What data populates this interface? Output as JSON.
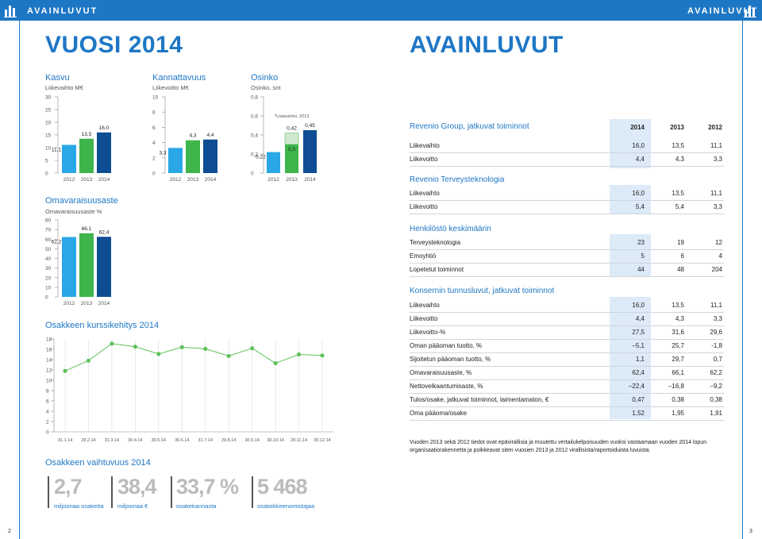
{
  "header": {
    "brand": "AVAINLUVUT"
  },
  "left_title": "VUOSI 2014",
  "right_title": "AVAINLUVUT",
  "colors": {
    "y2012": "#29a7e6",
    "y2013": "#3db54a",
    "y2014": "#0e4c93",
    "accent": "#1e77c5",
    "highlight": "#ddeaf7"
  },
  "charts": [
    {
      "id": "kasvu",
      "type": "bar",
      "title": "Kasvu",
      "ylabel": "Liikevaihto M€",
      "categories": [
        "2012",
        "2013",
        "2014"
      ],
      "values": [
        11.1,
        13.5,
        16.0
      ],
      "value_labels": [
        "11,1",
        "13,5",
        "16,0"
      ],
      "ylim": [
        0,
        30
      ],
      "yticks": [
        "0",
        "5",
        "10",
        "15",
        "20",
        "25",
        "30"
      ]
    },
    {
      "id": "kannattavuus",
      "type": "bar",
      "title": "Kannattavuus",
      "ylabel": "Liikevoitto M€",
      "categories": [
        "2012",
        "2013",
        "2014"
      ],
      "values": [
        3.3,
        4.3,
        4.4
      ],
      "value_labels": [
        "3,3",
        "4,3",
        "4,4"
      ],
      "ylim": [
        0,
        10
      ],
      "yticks": [
        "0",
        "2",
        "4",
        "6",
        "8",
        "10"
      ]
    },
    {
      "id": "osinko",
      "type": "bar",
      "title": "Osinko",
      "ylabel": "Osinko, snt",
      "categories": [
        "2012",
        "2013",
        "2014"
      ],
      "values": [
        0.22,
        0.3,
        0.45
      ],
      "extra_2013": 0.12,
      "value_labels": [
        "0,22",
        "0,3",
        "0,45"
      ],
      "extra_label": "0,42",
      "annotation": "*Lisäosinko, 2013",
      "ylim": [
        0,
        0.8
      ],
      "yticks": [
        "0",
        "0,2",
        "0,4",
        "0,6",
        "0,8"
      ]
    },
    {
      "id": "omavaraisuusaste",
      "type": "bar",
      "title": "Omavaraisuusaste",
      "ylabel": "Omavaraisuusaste %",
      "categories": [
        "2012",
        "2013",
        "2014"
      ],
      "values": [
        62.2,
        66.1,
        62.4
      ],
      "value_labels": [
        "62,2",
        "66,1",
        "62,4"
      ],
      "ylim": [
        0,
        80
      ],
      "yticks": [
        "0",
        "10",
        "20",
        "30",
        "40",
        "50",
        "60",
        "70",
        "80"
      ]
    }
  ],
  "line_chart": {
    "title": "Osakkeen kurssikehitys 2014",
    "chart_data": {
      "type": "line",
      "x": [
        "31.1.14",
        "28.2.14",
        "31.3.14",
        "30.4.14",
        "30.5.14",
        "30.6.14",
        "31.7.14",
        "29.8.14",
        "30.9.14",
        "30.10.14",
        "28.11.14",
        "30.12.14"
      ],
      "values": [
        11.8,
        13.8,
        17.1,
        16.5,
        15.1,
        16.4,
        16.1,
        14.7,
        16.2,
        13.3,
        15.0,
        14.8
      ],
      "ylim": [
        0,
        18
      ],
      "yticks": [
        "0",
        "2",
        "4",
        "6",
        "8",
        "10",
        "12",
        "14",
        "16",
        "18"
      ]
    }
  },
  "volume": {
    "title": "Osakkeen vaihtuvuus 2014",
    "items": [
      {
        "num": "2,7",
        "cap": "miljoonaa osaketta"
      },
      {
        "num": "38,4",
        "cap": "miljoonaa €"
      },
      {
        "num": "33,7 %",
        "cap": "osakekannasta"
      },
      {
        "num": "5 468",
        "cap": "osakekkeenomistajaa"
      }
    ]
  },
  "tables": {
    "years": [
      "2014",
      "2013",
      "2012"
    ],
    "group": {
      "title": "Revenio Group, jatkuvat toiminnot",
      "rows": [
        {
          "label": "Liikevaihto",
          "vals": [
            "16,0",
            "13,5",
            "11,1"
          ]
        },
        {
          "label": "Liikevoitto",
          "vals": [
            "4,4",
            "4,3",
            "3,3"
          ]
        }
      ]
    },
    "terveys": {
      "title": "Revenio Terveysteknologia",
      "rows": [
        {
          "label": "Liikevaihto",
          "vals": [
            "16,0",
            "13,5",
            "11,1"
          ]
        },
        {
          "label": "Liikevoitto",
          "vals": [
            "5,4",
            "5,4",
            "3,3"
          ]
        }
      ]
    },
    "henkilosto": {
      "title": "Henkilöstö keskimäärin",
      "rows": [
        {
          "label": "Terveysteknologia",
          "vals": [
            "23",
            "19",
            "12"
          ]
        },
        {
          "label": "Emoyhtiö",
          "vals": [
            "5",
            "6",
            "4"
          ]
        },
        {
          "label": "Lopetetut toiminnot",
          "vals": [
            "44",
            "48",
            "204"
          ]
        }
      ]
    },
    "konserni": {
      "title": "Konsernin tunnusluvut, jatkuvat toiminnot",
      "rows": [
        {
          "label": "Liikevaihto",
          "vals": [
            "16,0",
            "13,5",
            "11,1"
          ]
        },
        {
          "label": "Liikevoitto",
          "vals": [
            "4,4",
            "4,3",
            "3,3"
          ]
        },
        {
          "label": "Liikevoitto-%",
          "vals": [
            "27,5",
            "31,6",
            "29,6"
          ]
        },
        {
          "label": "Oman pääoman tuotto, %",
          "vals": [
            "–5,1",
            "25,7",
            "-1,8"
          ]
        },
        {
          "label": "Sijoitetun pääoman tuotto, %",
          "vals": [
            "1,1",
            "29,7",
            "0,7"
          ]
        },
        {
          "label": "Omavaraisuusaste, %",
          "vals": [
            "62,4",
            "66,1",
            "62,2"
          ]
        },
        {
          "label": "Nettovelkaantumisaste, %",
          "vals": [
            "–22,4",
            "–16,8",
            "–9,2"
          ]
        },
        {
          "label": "Tulos/osake, jatkuvat toiminnot, laimentamaton, €",
          "vals": [
            "0,47",
            "0,38",
            "0,38"
          ]
        },
        {
          "label": "Oma pääoma/osake",
          "vals": [
            "1,52",
            "1,95",
            "1,91"
          ]
        }
      ]
    }
  },
  "footnote": "Vuoden 2013 sekä 2012 tiedot ovat epävirallisia ja muutettu vertailukelpoisuuden vuoksi vastaamaan vuoden 2014 lopun organisaatiorakennetta ja poikkeavat siten vuosien 2013 ja 2012 virallisista/raportoiduista luvuista.",
  "page_numbers": {
    "left": "2",
    "right": "3"
  }
}
